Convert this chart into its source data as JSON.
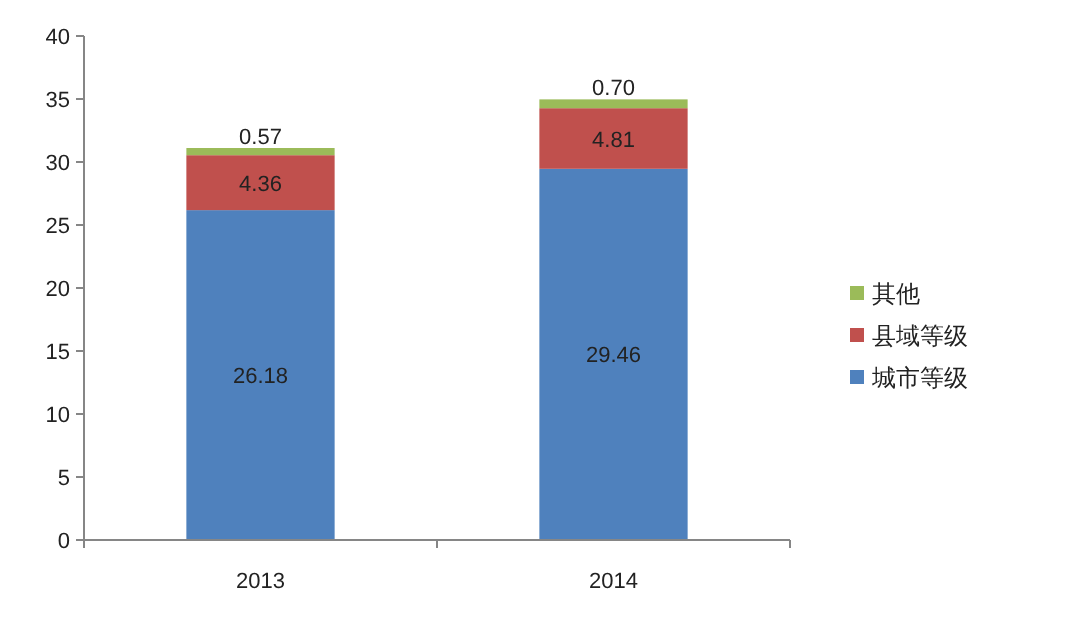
{
  "chart_data": {
    "type": "bar",
    "stacked": true,
    "categories": [
      "2013",
      "2014"
    ],
    "series": [
      {
        "name": "城市等级",
        "color": "#4f81bd",
        "values": [
          26.18,
          29.46
        ],
        "value_labels": [
          "26.18",
          "29.46"
        ]
      },
      {
        "name": "县域等级",
        "color": "#c0504d",
        "values": [
          4.36,
          4.81
        ],
        "value_labels": [
          "4.36",
          "4.81"
        ]
      },
      {
        "name": "其他",
        "color": "#9bbb59",
        "values": [
          0.57,
          0.7
        ],
        "value_labels": [
          "0.57",
          "0.70"
        ]
      }
    ],
    "ylim": [
      0,
      40
    ],
    "yticks": [
      0,
      5,
      10,
      15,
      20,
      25,
      30,
      35,
      40
    ],
    "legend": "right"
  }
}
